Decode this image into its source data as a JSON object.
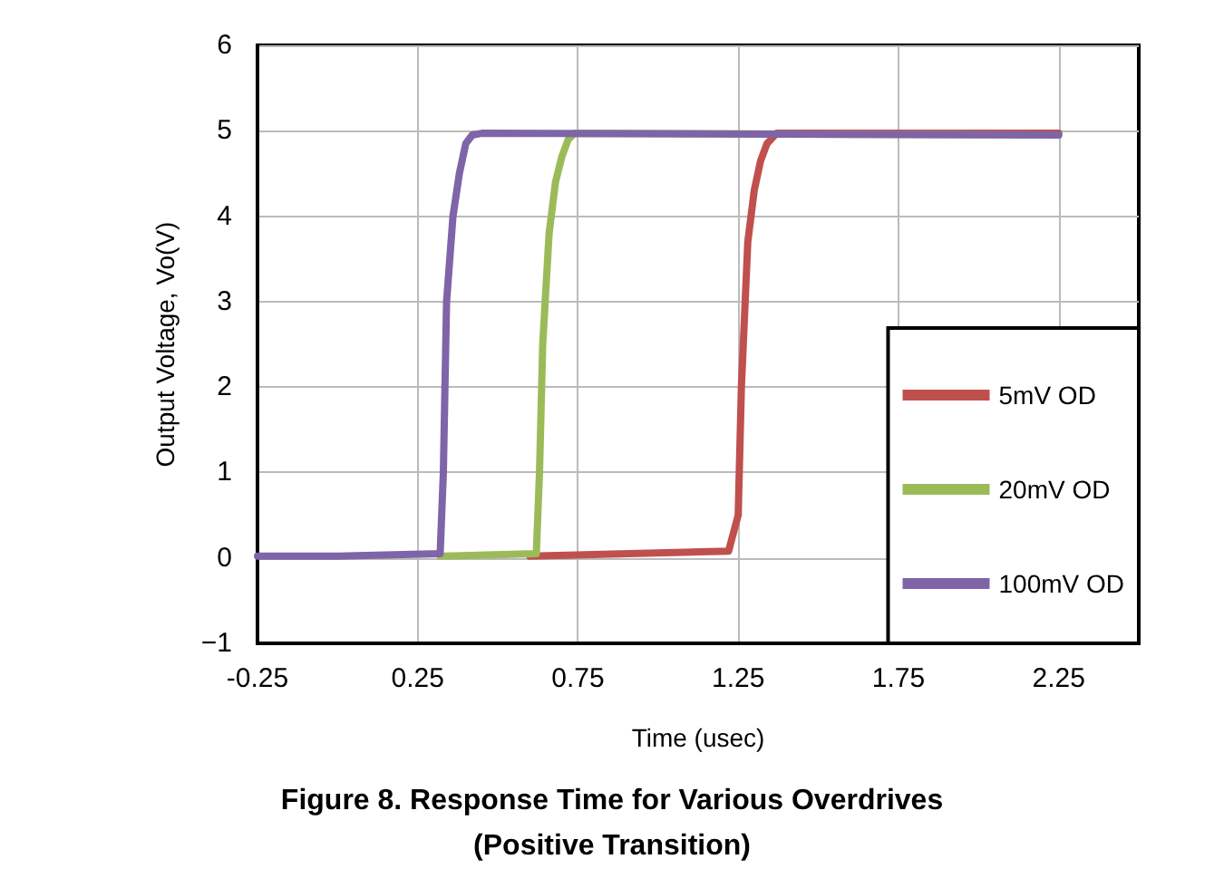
{
  "chart_data": {
    "type": "line",
    "title": "Figure 8. Response Time for Various Overdrives",
    "subtitle": "(Positive Transition)",
    "xlabel": "Time (usec)",
    "ylabel": "Output Voltage, Vo(V)",
    "series": [
      {
        "name": "5mV OD",
        "color": "#c0504d",
        "x": [
          0.6,
          1.22,
          1.25,
          1.26,
          1.28,
          1.3,
          1.32,
          1.34,
          1.37,
          2.25
        ],
        "values": [
          0.02,
          0.08,
          0.5,
          2,
          3.7,
          4.3,
          4.65,
          4.85,
          4.97,
          4.97
        ]
      },
      {
        "name": "20mV OD",
        "color": "#9bbb59",
        "x": [
          0.32,
          0.62,
          0.63,
          0.64,
          0.66,
          0.68,
          0.7,
          0.72,
          0.74,
          2.25
        ],
        "values": [
          0.02,
          0.05,
          1,
          2.5,
          3.8,
          4.4,
          4.7,
          4.9,
          4.97,
          4.95
        ]
      },
      {
        "name": "100mV OD",
        "color": "#7f64a8",
        "x": [
          -0.25,
          0.0,
          0.32,
          0.33,
          0.34,
          0.36,
          0.38,
          0.4,
          0.42,
          0.45,
          2.25
        ],
        "values": [
          0.02,
          0.02,
          0.05,
          1,
          3,
          4,
          4.5,
          4.85,
          4.95,
          4.97,
          4.95
        ]
      }
    ],
    "xlim": [
      -0.25,
      2.5
    ],
    "xticks": [
      -0.25,
      0.25,
      0.75,
      1.25,
      1.75,
      2.25
    ],
    "ylim": [
      -1,
      6
    ],
    "yticks": [
      {
        "value": -1,
        "label": "−1"
      },
      0,
      1,
      2,
      3,
      4,
      5,
      6
    ],
    "grid": true,
    "legend": "bottom right",
    "marker": "none",
    "line_style": "solid"
  }
}
